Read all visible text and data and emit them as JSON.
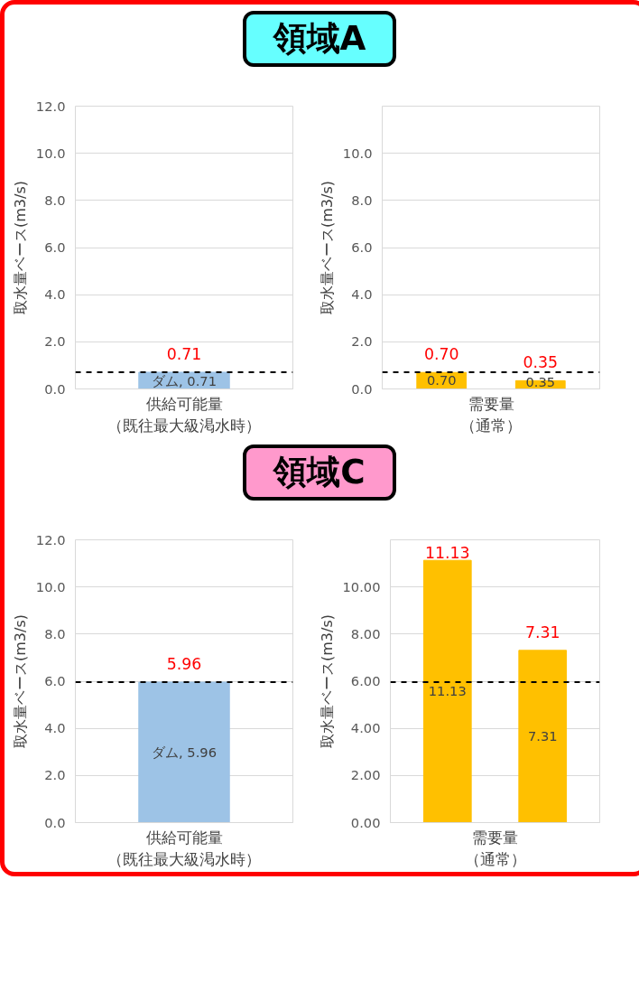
{
  "chart_data": [
    {
      "type": "bar",
      "title": "領域A",
      "xlabel": "供給可能量（既往最大級渇水時）",
      "ylabel": "取水量ベース(m3/s)",
      "categories": [
        null
      ],
      "series": [
        {
          "color": "#9dc3e6",
          "values": [
            0.71
          ],
          "value_labels": [
            "ダム, 0.71"
          ]
        }
      ],
      "totals": [
        "0.71"
      ],
      "ylim": [
        0,
        12
      ],
      "yticks": [
        {
          "value": 0,
          "label": "0.0"
        },
        {
          "value": 2,
          "label": "2.0"
        },
        {
          "value": 4,
          "label": "4.0"
        },
        {
          "value": 6,
          "label": "6.0"
        },
        {
          "value": 8,
          "label": "8.0"
        },
        {
          "value": 10,
          "label": "10.0"
        },
        {
          "value": 12,
          "label": "12.0"
        }
      ],
      "grid": "y",
      "ref_lines": [
        {
          "axis": "y",
          "value": 0.71,
          "color": "#000000",
          "line_style": "dashed"
        }
      ]
    },
    {
      "type": "bar",
      "xlabel": "需要量（通常）",
      "ylabel": "取水量ベース(m3/s)",
      "categories": [
        null,
        null
      ],
      "series": [
        {
          "color": "#ffc000",
          "values": [
            0.7,
            0.35
          ],
          "value_labels": [
            "0.70",
            "0.35"
          ]
        }
      ],
      "totals": [
        "0.70",
        "0.35"
      ],
      "ylim": [
        0,
        12
      ],
      "yticks": [
        {
          "value": 0,
          "label": "0.0"
        },
        {
          "value": 2,
          "label": "2.0"
        },
        {
          "value": 4,
          "label": "4.0"
        },
        {
          "value": 6,
          "label": "6.0"
        },
        {
          "value": 8,
          "label": "8.0"
        },
        {
          "value": 10,
          "label": "10.0"
        },
        {
          "value": 12,
          "label": null
        }
      ],
      "grid": "y",
      "ref_lines": [
        {
          "axis": "y",
          "value": 0.71,
          "color": "#000000",
          "line_style": "dashed"
        }
      ]
    },
    {
      "type": "bar",
      "title": "領域C",
      "xlabel": "供給可能量（既往最大級渇水時）",
      "ylabel": "取水量ベース(m3/s)",
      "categories": [
        null
      ],
      "series": [
        {
          "color": "#9dc3e6",
          "values": [
            5.96
          ],
          "value_labels": [
            "ダム, 5.96"
          ]
        }
      ],
      "totals": [
        "5.96"
      ],
      "ylim": [
        0,
        12
      ],
      "yticks": [
        {
          "value": 0,
          "label": "0.0"
        },
        {
          "value": 2,
          "label": "2.0"
        },
        {
          "value": 4,
          "label": "4.0"
        },
        {
          "value": 6,
          "label": "6.0"
        },
        {
          "value": 8,
          "label": "8.0"
        },
        {
          "value": 10,
          "label": "10.0"
        },
        {
          "value": 12,
          "label": "12.0"
        }
      ],
      "grid": "y",
      "ref_lines": [
        {
          "axis": "y",
          "value": 5.96,
          "color": "#000000",
          "line_style": "dashed"
        }
      ]
    },
    {
      "type": "bar",
      "xlabel": "需要量（通常）",
      "ylabel": "取水量ベース(m3/s)",
      "categories": [
        null,
        null
      ],
      "series": [
        {
          "color": "#ffc000",
          "values": [
            11.13,
            7.31
          ],
          "value_labels": [
            "11.13",
            "7.31"
          ]
        }
      ],
      "totals": [
        "11.13",
        "7.31"
      ],
      "ylim": [
        0,
        12
      ],
      "yticks": [
        {
          "value": 0,
          "label": "0.00"
        },
        {
          "value": 2,
          "label": "2.00"
        },
        {
          "value": 4,
          "label": "4.00"
        },
        {
          "value": 6,
          "label": "6.00"
        },
        {
          "value": 8,
          "label": "8.00"
        },
        {
          "value": 10,
          "label": "10.00"
        },
        {
          "value": 12,
          "label": null
        }
      ],
      "grid": "y",
      "ref_lines": [
        {
          "axis": "y",
          "value": 5.96,
          "color": "#000000",
          "line_style": "dashed"
        }
      ]
    }
  ]
}
